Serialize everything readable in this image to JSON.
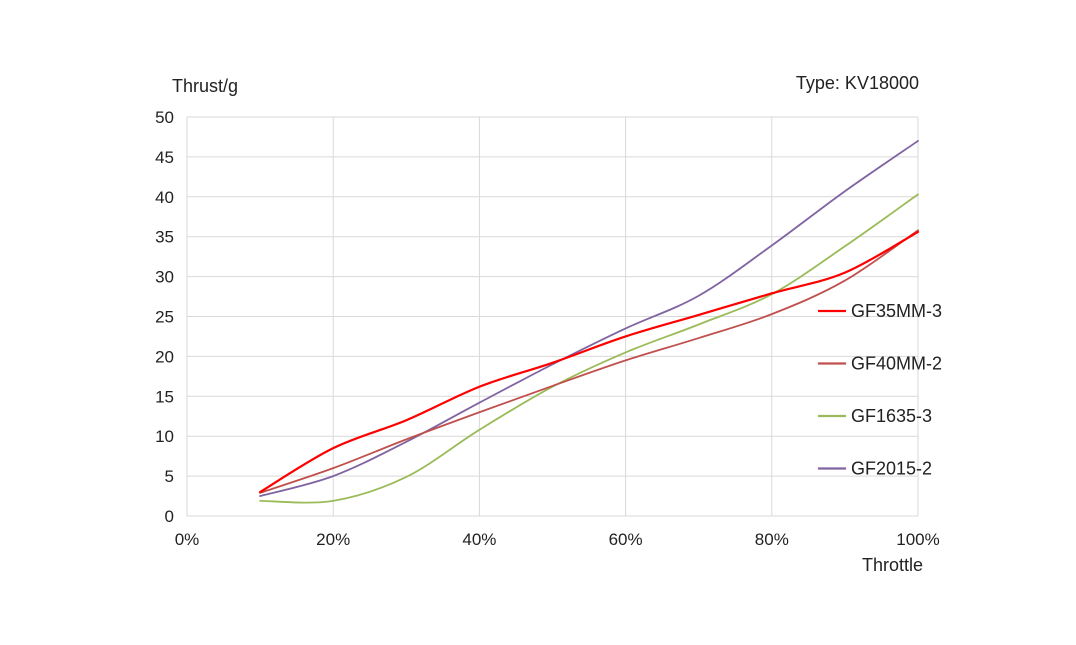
{
  "chart_data": {
    "type": "line",
    "annotation": "Type: KV18000",
    "xlabel": "Throttle",
    "ylabel": "Thrust/g",
    "xlim": [
      0,
      100
    ],
    "ylim": [
      0,
      50
    ],
    "x_ticks": [
      "0%",
      "20%",
      "40%",
      "60%",
      "80%",
      "100%"
    ],
    "x_tick_values": [
      0,
      20,
      40,
      60,
      80,
      100
    ],
    "y_ticks": [
      "0",
      "5",
      "10",
      "15",
      "20",
      "25",
      "30",
      "35",
      "40",
      "45",
      "50"
    ],
    "y_tick_values": [
      0,
      5,
      10,
      15,
      20,
      25,
      30,
      35,
      40,
      45,
      50
    ],
    "grid": true,
    "legend_position": "right",
    "x": [
      10,
      20,
      30,
      40,
      50,
      60,
      70,
      80,
      90,
      100
    ],
    "series": [
      {
        "name": "GF35MM-3",
        "color": "#ff0000",
        "values": [
          3.0,
          8.5,
          12.0,
          16.2,
          19.2,
          22.5,
          25.2,
          27.9,
          30.5,
          35.6
        ]
      },
      {
        "name": "GF40MM-2",
        "color": "#c0504d",
        "values": [
          2.9,
          6.0,
          9.6,
          13.0,
          16.3,
          19.5,
          22.3,
          25.3,
          29.5,
          35.8
        ]
      },
      {
        "name": "GF1635-3",
        "color": "#9bbb59",
        "values": [
          1.9,
          1.9,
          4.9,
          10.8,
          16.2,
          20.5,
          24.0,
          27.8,
          33.8,
          40.3
        ]
      },
      {
        "name": "GF2015-2",
        "color": "#8064a2",
        "values": [
          2.5,
          5.0,
          9.3,
          14.2,
          19.0,
          23.5,
          27.6,
          33.9,
          40.7,
          47.0
        ]
      }
    ]
  }
}
